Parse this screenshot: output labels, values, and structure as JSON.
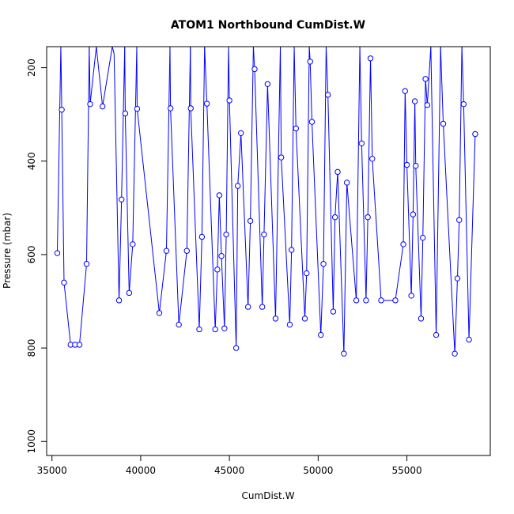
{
  "chart_data": {
    "type": "line",
    "title": "ATOM1 Northbound CumDist.W",
    "xlabel": "CumDist.W",
    "ylabel": "Pressure (mbar)",
    "xlim": [
      34700,
      59700
    ],
    "ylim": [
      1030,
      155
    ],
    "y_reversed": true,
    "grid": false,
    "legend": "none",
    "markers": "open-circle",
    "series_color": "#0000ff",
    "x_ticks": [
      35000,
      40000,
      45000,
      50000,
      55000
    ],
    "x_tick_labels": [
      "35000",
      "40000",
      "45000",
      "50000",
      "55000"
    ],
    "y_ticks": [
      200,
      400,
      600,
      800,
      1000
    ],
    "y_tick_labels": [
      "200",
      "400",
      "600",
      "800",
      "1000"
    ],
    "series": [
      {
        "points": [
          [
            35300,
            597,
            true
          ],
          [
            35500,
            155,
            false
          ],
          [
            35550,
            290,
            true
          ],
          [
            35680,
            660,
            true
          ],
          [
            36050,
            793,
            true
          ],
          [
            36300,
            793,
            true
          ],
          [
            36550,
            793,
            true
          ],
          [
            36950,
            620,
            true
          ],
          [
            37100,
            155,
            false
          ],
          [
            37150,
            278,
            true
          ],
          [
            37300,
            225,
            false
          ],
          [
            37500,
            155,
            false
          ],
          [
            37850,
            283,
            true
          ],
          [
            38400,
            155,
            false
          ],
          [
            38500,
            170,
            false
          ],
          [
            38780,
            698,
            true
          ],
          [
            38920,
            482,
            true
          ],
          [
            39100,
            155,
            false
          ],
          [
            39130,
            298,
            true
          ],
          [
            39350,
            682,
            true
          ],
          [
            39550,
            578,
            true
          ],
          [
            39780,
            155,
            false
          ],
          [
            39800,
            288,
            true
          ],
          [
            41050,
            725,
            true
          ],
          [
            41450,
            592,
            true
          ],
          [
            41650,
            155,
            false
          ],
          [
            41680,
            287,
            true
          ],
          [
            42150,
            750,
            true
          ],
          [
            42600,
            592,
            true
          ],
          [
            42800,
            155,
            false
          ],
          [
            42820,
            287,
            true
          ],
          [
            43300,
            760,
            true
          ],
          [
            43450,
            562,
            true
          ],
          [
            43600,
            155,
            false
          ],
          [
            43730,
            277,
            true
          ],
          [
            44200,
            760,
            true
          ],
          [
            44320,
            632,
            true
          ],
          [
            44430,
            473,
            true
          ],
          [
            44550,
            603,
            true
          ],
          [
            44720,
            758,
            true
          ],
          [
            44820,
            557,
            true
          ],
          [
            44950,
            155,
            false
          ],
          [
            45000,
            270,
            true
          ],
          [
            45380,
            800,
            true
          ],
          [
            45470,
            453,
            true
          ],
          [
            45650,
            340,
            true
          ],
          [
            46050,
            712,
            true
          ],
          [
            46180,
            528,
            true
          ],
          [
            46350,
            155,
            false
          ],
          [
            46420,
            203,
            true
          ],
          [
            46850,
            712,
            true
          ],
          [
            46950,
            557,
            true
          ],
          [
            47150,
            235,
            true
          ],
          [
            47600,
            737,
            true
          ],
          [
            47870,
            155,
            false
          ],
          [
            47920,
            392,
            true
          ],
          [
            48400,
            750,
            true
          ],
          [
            48500,
            590,
            true
          ],
          [
            48650,
            155,
            false
          ],
          [
            48750,
            330,
            true
          ],
          [
            49250,
            737,
            true
          ],
          [
            49350,
            640,
            true
          ],
          [
            49500,
            155,
            false
          ],
          [
            49550,
            187,
            true
          ],
          [
            49650,
            316,
            true
          ],
          [
            50150,
            772,
            true
          ],
          [
            50300,
            620,
            true
          ],
          [
            50450,
            155,
            false
          ],
          [
            50550,
            258,
            true
          ],
          [
            50850,
            722,
            true
          ],
          [
            50950,
            520,
            true
          ],
          [
            51100,
            423,
            true
          ],
          [
            51450,
            812,
            true
          ],
          [
            51620,
            446,
            true
          ],
          [
            52150,
            698,
            true
          ],
          [
            52350,
            155,
            false
          ],
          [
            52450,
            362,
            true
          ],
          [
            52700,
            698,
            true
          ],
          [
            52800,
            520,
            true
          ],
          [
            52950,
            180,
            true
          ],
          [
            53050,
            395,
            true
          ],
          [
            53550,
            698,
            true
          ],
          [
            54350,
            698,
            true
          ],
          [
            54800,
            578,
            true
          ],
          [
            54900,
            250,
            true
          ],
          [
            55000,
            408,
            true
          ],
          [
            55250,
            688,
            true
          ],
          [
            55350,
            514,
            true
          ],
          [
            55450,
            272,
            true
          ],
          [
            55500,
            410,
            true
          ],
          [
            55800,
            737,
            true
          ],
          [
            55900,
            564,
            true
          ],
          [
            56050,
            224,
            true
          ],
          [
            56150,
            280,
            true
          ],
          [
            56350,
            155,
            false
          ],
          [
            56650,
            772,
            true
          ],
          [
            56900,
            155,
            false
          ],
          [
            57050,
            320,
            true
          ],
          [
            57700,
            812,
            true
          ],
          [
            57850,
            651,
            true
          ],
          [
            57950,
            526,
            true
          ],
          [
            58100,
            155,
            false
          ],
          [
            58200,
            278,
            true
          ],
          [
            58500,
            782,
            true
          ],
          [
            58850,
            342,
            true
          ]
        ]
      }
    ]
  }
}
